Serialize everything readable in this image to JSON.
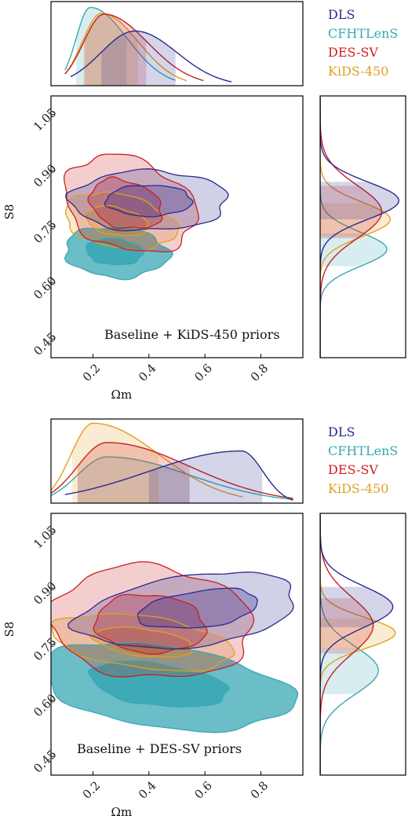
{
  "colors": {
    "DLS": "#2b2b8f",
    "CFHTLenS": "#3aa7b5",
    "DES-SV": "#cc1f1f",
    "KiDS-450": "#e0a020"
  },
  "chart_data": [
    {
      "type": "contour",
      "annotation": "Baseline + KiDS-450 priors",
      "xlabel": "Ωm",
      "ylabel": "S8",
      "xlim": [
        0.05,
        0.95
      ],
      "ylim": [
        0.4,
        1.1
      ],
      "xticks": [
        0.2,
        0.4,
        0.6,
        0.8
      ],
      "xtick_labels": [
        "0.2",
        "0.4",
        "0.6",
        "0.8"
      ],
      "yticks": [
        0.45,
        0.6,
        0.75,
        0.9,
        1.05
      ],
      "ytick_labels": [
        "0.45",
        "0.60",
        "0.75",
        "0.90",
        "1.05"
      ],
      "legend": [
        "DLS",
        "CFHTLenS",
        "DES-SV",
        "KiDS-450"
      ],
      "legend_placement": "top-right",
      "series": [
        {
          "name": "DLS",
          "omega_m_peak": 0.35,
          "omega_m_range": [
            0.12,
            0.68
          ],
          "s8_peak": 0.82,
          "s8_range": [
            0.7,
            0.92
          ]
        },
        {
          "name": "CFHTLenS",
          "omega_m_peak": 0.19,
          "omega_m_range": [
            0.1,
            0.48
          ],
          "s8_peak": 0.69,
          "s8_range": [
            0.58,
            0.78
          ]
        },
        {
          "name": "DES-SV",
          "omega_m_peak": 0.24,
          "omega_m_range": [
            0.1,
            0.58
          ],
          "s8_peak": 0.79,
          "s8_range": [
            0.64,
            0.95
          ]
        },
        {
          "name": "KiDS-450",
          "omega_m_peak": 0.23,
          "omega_m_range": [
            0.1,
            0.52
          ],
          "s8_peak": 0.77,
          "s8_range": [
            0.65,
            0.85
          ]
        }
      ]
    },
    {
      "type": "contour",
      "annotation": "Baseline + DES-SV priors",
      "xlabel": "Ωm",
      "ylabel": "S8",
      "xlim": [
        0.05,
        0.95
      ],
      "ylim": [
        0.4,
        1.1
      ],
      "xticks": [
        0.2,
        0.4,
        0.6,
        0.8
      ],
      "xtick_labels": [
        "0.2",
        "0.4",
        "0.6",
        "0.8"
      ],
      "yticks": [
        0.45,
        0.6,
        0.75,
        0.9,
        1.05
      ],
      "ytick_labels": [
        "0.45",
        "0.60",
        "0.75",
        "0.90",
        "1.05"
      ],
      "legend": [
        "DLS",
        "CFHTLenS",
        "DES-SV",
        "KiDS-450"
      ],
      "legend_placement": "top-right",
      "series": [
        {
          "name": "DLS",
          "omega_m_peak": 0.73,
          "omega_m_range": [
            0.1,
            0.9
          ],
          "s8_peak": 0.85,
          "s8_range": [
            0.72,
            0.96
          ]
        },
        {
          "name": "CFHTLenS",
          "omega_m_peak": 0.25,
          "omega_m_range": [
            0.05,
            0.9
          ],
          "s8_peak": 0.68,
          "s8_range": [
            0.5,
            0.78
          ]
        },
        {
          "name": "DES-SV",
          "omega_m_peak": 0.25,
          "omega_m_range": [
            0.05,
            0.9
          ],
          "s8_peak": 0.8,
          "s8_range": [
            0.63,
            0.96
          ]
        },
        {
          "name": "KiDS-450",
          "omega_m_peak": 0.2,
          "omega_m_range": [
            0.05,
            0.72
          ],
          "s8_peak": 0.78,
          "s8_range": [
            0.67,
            0.85
          ]
        }
      ]
    }
  ]
}
